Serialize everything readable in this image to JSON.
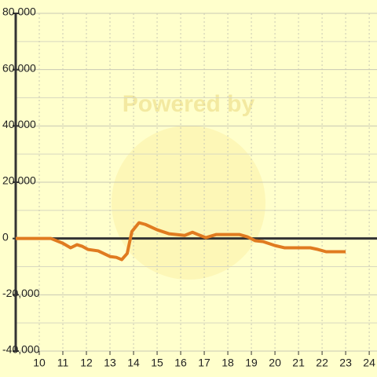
{
  "chart_data": {
    "type": "line",
    "watermark": "Powered by",
    "x": [
      9,
      10.5,
      11,
      11.33,
      11.6,
      11.83,
      12.07,
      12.5,
      13,
      13.27,
      13.5,
      13.73,
      13.93,
      14.23,
      14.5,
      15,
      15.5,
      16.17,
      16.5,
      16.73,
      17.07,
      17.5,
      18.5,
      18.83,
      19.17,
      19.5,
      20,
      20.4,
      21.5,
      21.83,
      22.17,
      23
    ],
    "series": [
      {
        "color": "#e07b20",
        "values": [
          0,
          0,
          -1700,
          -3300,
          -2200,
          -2800,
          -3900,
          -4400,
          -6400,
          -6700,
          -7500,
          -5300,
          2500,
          5600,
          5000,
          3100,
          1700,
          1100,
          2200,
          1400,
          300,
          1400,
          1400,
          600,
          -800,
          -1100,
          -2500,
          -3300,
          -3300,
          -3900,
          -4700,
          -4700
        ]
      }
    ],
    "xlim": [
      9,
      24.33
    ],
    "xticks": [
      10,
      11,
      12,
      13,
      14,
      15,
      16,
      17,
      18,
      19,
      20,
      21,
      22,
      23,
      24
    ],
    "ylim": [
      -40000,
      80000
    ],
    "yticks": [
      {
        "value": -40000,
        "label": "-40,000"
      },
      {
        "value": -20000,
        "label": "-20,000"
      },
      0,
      {
        "value": 20000,
        "label": "20,000"
      },
      {
        "value": 40000,
        "label": "40,000"
      },
      {
        "value": 60000,
        "label": "60,000"
      },
      {
        "value": 80000,
        "label": "80,000"
      }
    ],
    "y_minor_grid": [
      -30000,
      -10000,
      10000,
      30000,
      50000,
      70000
    ],
    "grid": true
  }
}
